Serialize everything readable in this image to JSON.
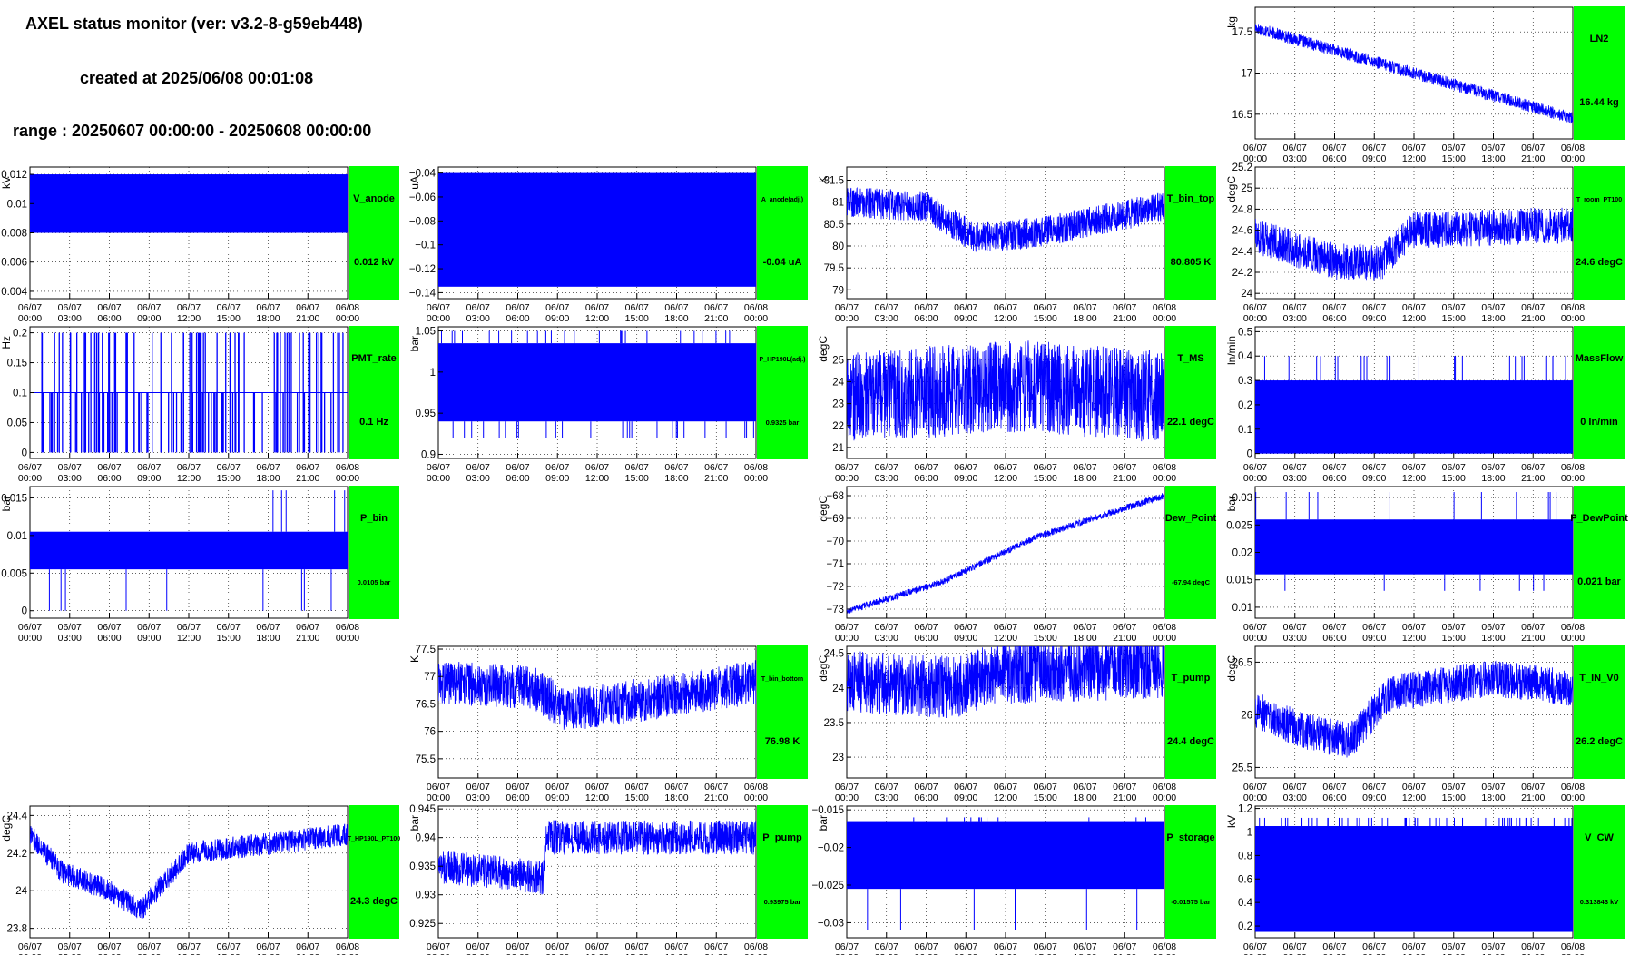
{
  "header": {
    "title": "AXEL status monitor (ver: v3.2-8-g59eb448)",
    "created": "created at 2025/06/08 00:01:08",
    "range": "range : 20250607 00:00:00 - 20250608 00:00:00"
  },
  "colors": {
    "trace": "#0000ff",
    "label_box": "#00ff00",
    "grid": "#000000"
  },
  "time_ticks": [
    [
      "06/07",
      "00:00"
    ],
    [
      "06/07",
      "03:00"
    ],
    [
      "06/07",
      "06:00"
    ],
    [
      "06/07",
      "09:00"
    ],
    [
      "06/07",
      "12:00"
    ],
    [
      "06/07",
      "15:00"
    ],
    [
      "06/07",
      "18:00"
    ],
    [
      "06/07",
      "21:00"
    ],
    [
      "06/08",
      "00:00"
    ]
  ],
  "chart_data": [
    {
      "id": "LN2",
      "type": "line",
      "name": "LN2",
      "value": "16.44 kg",
      "ylabel": "kg",
      "ylim": [
        16.2,
        17.8
      ],
      "yticks": [
        16.5,
        17,
        17.5
      ],
      "ytick_labels": [
        "16.5",
        "17",
        "17.5"
      ],
      "grid": true,
      "style": "trend",
      "trend": [
        [
          0,
          17.55
        ],
        [
          0.5,
          17.0
        ],
        [
          1,
          16.45
        ]
      ],
      "noise": 0.15
    },
    {
      "id": "V_anode",
      "type": "line",
      "name": "V_anode",
      "value": "0.012 kV",
      "ylabel": "kV",
      "ylim": [
        0.0035,
        0.0125
      ],
      "yticks": [
        0.004,
        0.006,
        0.008,
        0.01,
        0.012
      ],
      "ytick_labels": [
        "0.004",
        "0.006",
        "0.008",
        "0.01",
        "0.012"
      ],
      "grid": true,
      "style": "band",
      "band": [
        0.008,
        0.012
      ]
    },
    {
      "id": "A_anode",
      "type": "line",
      "name": "A_anode(adj.)",
      "value": "-0.04 uA",
      "ylabel": "uA",
      "ylim": [
        -0.145,
        -0.035
      ],
      "yticks": [
        -0.14,
        -0.12,
        -0.1,
        -0.08,
        -0.06,
        -0.04
      ],
      "ytick_labels": [
        "−0.14",
        "−0.12",
        "−0.1",
        "−0.08",
        "−0.06",
        "−0.04"
      ],
      "grid": true,
      "style": "band",
      "band": [
        -0.135,
        -0.04
      ]
    },
    {
      "id": "T_bin_top",
      "type": "line",
      "name": "T_bin_top",
      "value": "80.805 K",
      "ylabel": "K",
      "ylim": [
        78.8,
        81.8
      ],
      "yticks": [
        79,
        79.5,
        80,
        80.5,
        81,
        81.5
      ],
      "ytick_labels": [
        "79",
        "79.5",
        "80",
        "80.5",
        "81",
        "81.5"
      ],
      "grid": true,
      "style": "trend",
      "trend": [
        [
          0,
          81.0
        ],
        [
          0.25,
          80.9
        ],
        [
          0.4,
          80.2
        ],
        [
          0.6,
          80.3
        ],
        [
          1,
          80.9
        ]
      ],
      "noise": 0.7
    },
    {
      "id": "T_room_PT100",
      "type": "line",
      "name": "T_room_PT100",
      "value": "24.6 degC",
      "ylabel": "degC",
      "ylim": [
        23.95,
        25.2
      ],
      "yticks": [
        24,
        24.2,
        24.4,
        24.6,
        24.8,
        25,
        25.2
      ],
      "ytick_labels": [
        "24",
        "24.2",
        "24.4",
        "24.6",
        "24.8",
        "25",
        "25.2"
      ],
      "grid": true,
      "style": "trend",
      "trend": [
        [
          0,
          24.55
        ],
        [
          0.25,
          24.3
        ],
        [
          0.4,
          24.3
        ],
        [
          0.5,
          24.6
        ],
        [
          1,
          24.65
        ]
      ],
      "noise": 0.35
    },
    {
      "id": "PMT_rate",
      "type": "line",
      "name": "PMT_rate",
      "value": "0.1 Hz",
      "ylabel": "Hz",
      "ylim": [
        -0.01,
        0.21
      ],
      "yticks": [
        0,
        0.05,
        0.1,
        0.15,
        0.2
      ],
      "ytick_labels": [
        "0",
        "0.05",
        "0.1",
        "0.15",
        "0.2"
      ],
      "grid": true,
      "style": "spikes",
      "base": 0,
      "levels": [
        0.1,
        0.2
      ],
      "density": 0.35
    },
    {
      "id": "P_HP190L",
      "type": "line",
      "name": "P_HP190L(adj.)",
      "value": "0.9325 bar",
      "ylabel": "bar",
      "ylim": [
        0.895,
        1.055
      ],
      "yticks": [
        0.9,
        0.95,
        1,
        1.05
      ],
      "ytick_labels": [
        "0.9",
        "0.95",
        "1",
        "1.05"
      ],
      "grid": true,
      "style": "band_spikes",
      "band": [
        0.94,
        1.035
      ],
      "spike_lo": 0.92,
      "spike_hi": 1.05,
      "density": 0.15
    },
    {
      "id": "T_MS",
      "type": "line",
      "name": "T_MS",
      "value": "22.1 degC",
      "ylabel": "degC",
      "ylim": [
        20.5,
        26.5
      ],
      "yticks": [
        21,
        22,
        23,
        24,
        25
      ],
      "ytick_labels": [
        "21",
        "22",
        "23",
        "24",
        "25"
      ],
      "grid": true,
      "style": "trend",
      "trend": [
        [
          0,
          23.2
        ],
        [
          0.4,
          23.7
        ],
        [
          0.55,
          23.8
        ],
        [
          1,
          23.3
        ]
      ],
      "noise": 4.2
    },
    {
      "id": "MassFlow",
      "type": "line",
      "name": "MassFlow",
      "value": "0 ln/min",
      "ylabel": "ln/min",
      "ylim": [
        -0.02,
        0.52
      ],
      "yticks": [
        0,
        0.1,
        0.2,
        0.3,
        0.4,
        0.5
      ],
      "ytick_labels": [
        "0",
        "0.1",
        "0.2",
        "0.3",
        "0.4",
        "0.5"
      ],
      "grid": true,
      "style": "band_spikes",
      "band": [
        0.0,
        0.3
      ],
      "spike_lo": 0.0,
      "spike_hi": 0.4,
      "density": 0.15
    },
    {
      "id": "P_bin",
      "type": "line",
      "name": "P_bin",
      "value": "0.0105 bar",
      "ylabel": "bar",
      "ylim": [
        -0.001,
        0.0165
      ],
      "yticks": [
        0,
        0.005,
        0.01,
        0.015
      ],
      "ytick_labels": [
        "0",
        "0.005",
        "0.01",
        "0.015"
      ],
      "grid": true,
      "style": "band_spikes",
      "band": [
        0.0055,
        0.0105
      ],
      "spike_lo": 0.0,
      "spike_hi": 0.016,
      "density": 0.04
    },
    {
      "id": "Dew_Point",
      "type": "line",
      "name": "Dew_Point",
      "value": "-67.94 degC",
      "ylabel": "degC",
      "ylim": [
        -73.4,
        -67.6
      ],
      "yticks": [
        -73,
        -72,
        -71,
        -70,
        -69,
        -68
      ],
      "ytick_labels": [
        "−73",
        "−72",
        "−71",
        "−70",
        "−69",
        "−68"
      ],
      "grid": true,
      "style": "trend",
      "trend": [
        [
          0,
          -73.1
        ],
        [
          0.3,
          -71.8
        ],
        [
          0.6,
          -69.8
        ],
        [
          1,
          -68.0
        ]
      ],
      "noise": 0.3
    },
    {
      "id": "P_DewPoint",
      "type": "line",
      "name": "P_DewPoint",
      "value": "0.021 bar",
      "ylabel": "bar",
      "ylim": [
        0.008,
        0.032
      ],
      "yticks": [
        0.01,
        0.015,
        0.02,
        0.025,
        0.03
      ],
      "ytick_labels": [
        "0.01",
        "0.015",
        "0.02",
        "0.025",
        "0.03"
      ],
      "grid": true,
      "style": "band_spikes",
      "band": [
        0.016,
        0.026
      ],
      "spike_lo": 0.013,
      "spike_hi": 0.031,
      "density": 0.05
    },
    {
      "id": "T_bin_bottom",
      "type": "line",
      "name": "T_bin_bottom",
      "value": "76.98 K",
      "ylabel": "K",
      "ylim": [
        75.15,
        77.55
      ],
      "yticks": [
        75.5,
        76,
        76.5,
        77,
        77.5
      ],
      "ytick_labels": [
        "75.5",
        "76",
        "76.5",
        "77",
        "77.5"
      ],
      "grid": true,
      "style": "trend",
      "trend": [
        [
          0,
          76.9
        ],
        [
          0.3,
          76.8
        ],
        [
          0.4,
          76.4
        ],
        [
          0.55,
          76.5
        ],
        [
          1,
          76.9
        ]
      ],
      "noise": 0.8
    },
    {
      "id": "T_pump",
      "type": "line",
      "name": "T_pump",
      "value": "24.4 degC",
      "ylabel": "degC",
      "ylim": [
        22.7,
        24.6
      ],
      "yticks": [
        23,
        23.5,
        24,
        24.5
      ],
      "ytick_labels": [
        "23",
        "23.5",
        "24",
        "24.5"
      ],
      "grid": true,
      "style": "trend",
      "trend": [
        [
          0,
          24.1
        ],
        [
          0.35,
          24.0
        ],
        [
          0.45,
          24.2
        ],
        [
          1,
          24.3
        ]
      ],
      "noise": 0.9
    },
    {
      "id": "T_IN_V0",
      "type": "line",
      "name": "T_IN_V0",
      "value": "26.2 degC",
      "ylabel": "degC",
      "ylim": [
        25.4,
        26.65
      ],
      "yticks": [
        25.5,
        26,
        26.5
      ],
      "ytick_labels": [
        "25.5",
        "26",
        "26.5"
      ],
      "grid": true,
      "style": "trend",
      "trend": [
        [
          0,
          26.05
        ],
        [
          0.15,
          25.85
        ],
        [
          0.3,
          25.75
        ],
        [
          0.42,
          26.2
        ],
        [
          0.75,
          26.35
        ],
        [
          1,
          26.25
        ]
      ],
      "noise": 0.35
    },
    {
      "id": "T_HP190L_PT100",
      "type": "line",
      "name": "T_HP190L_PT100",
      "value": "24.3 degC",
      "ylabel": "degC",
      "ylim": [
        23.75,
        24.45
      ],
      "yticks": [
        23.8,
        24,
        24.2,
        24.4
      ],
      "ytick_labels": [
        "23.8",
        "24",
        "24.2",
        "24.4"
      ],
      "grid": true,
      "style": "trend",
      "trend": [
        [
          0,
          24.3
        ],
        [
          0.1,
          24.1
        ],
        [
          0.25,
          24.0
        ],
        [
          0.35,
          23.9
        ],
        [
          0.5,
          24.2
        ],
        [
          1,
          24.3
        ]
      ],
      "noise": 0.12
    },
    {
      "id": "P_pump",
      "type": "line",
      "name": "P_pump",
      "value": "0.93975 bar",
      "ylabel": "bar",
      "ylim": [
        0.9225,
        0.9455
      ],
      "yticks": [
        0.925,
        0.93,
        0.935,
        0.94,
        0.945
      ],
      "ytick_labels": [
        "0.925",
        "0.93",
        "0.935",
        "0.94",
        "0.945"
      ],
      "grid": true,
      "style": "trend",
      "trend": [
        [
          0,
          0.935
        ],
        [
          0.33,
          0.933
        ],
        [
          0.34,
          0.94
        ],
        [
          1,
          0.94
        ]
      ],
      "noise": 0.006
    },
    {
      "id": "P_storage",
      "type": "line",
      "name": "P_storage",
      "value": "-0.01575 bar",
      "ylabel": "bar",
      "ylim": [
        -0.032,
        -0.0145
      ],
      "yticks": [
        -0.03,
        -0.025,
        -0.02,
        -0.015
      ],
      "ytick_labels": [
        "−0.03",
        "−0.025",
        "−0.02",
        "−0.015"
      ],
      "grid": true,
      "style": "band_spikes",
      "band": [
        -0.0255,
        -0.0165
      ],
      "spike_lo": -0.031,
      "spike_hi": -0.016,
      "density": 0.05
    },
    {
      "id": "V_CW",
      "type": "line",
      "name": "V_CW",
      "value": "0.313843 kV",
      "ylabel": "kV",
      "ylim": [
        0.1,
        1.22
      ],
      "yticks": [
        0.2,
        0.4,
        0.6,
        0.8,
        1,
        1.2
      ],
      "ytick_labels": [
        "0.2",
        "0.4",
        "0.6",
        "0.8",
        "1",
        "1.2"
      ],
      "grid": true,
      "style": "band_spikes",
      "band": [
        0.15,
        1.05
      ],
      "spike_lo": 0.15,
      "spike_hi": 1.12,
      "density": 0.3
    }
  ]
}
